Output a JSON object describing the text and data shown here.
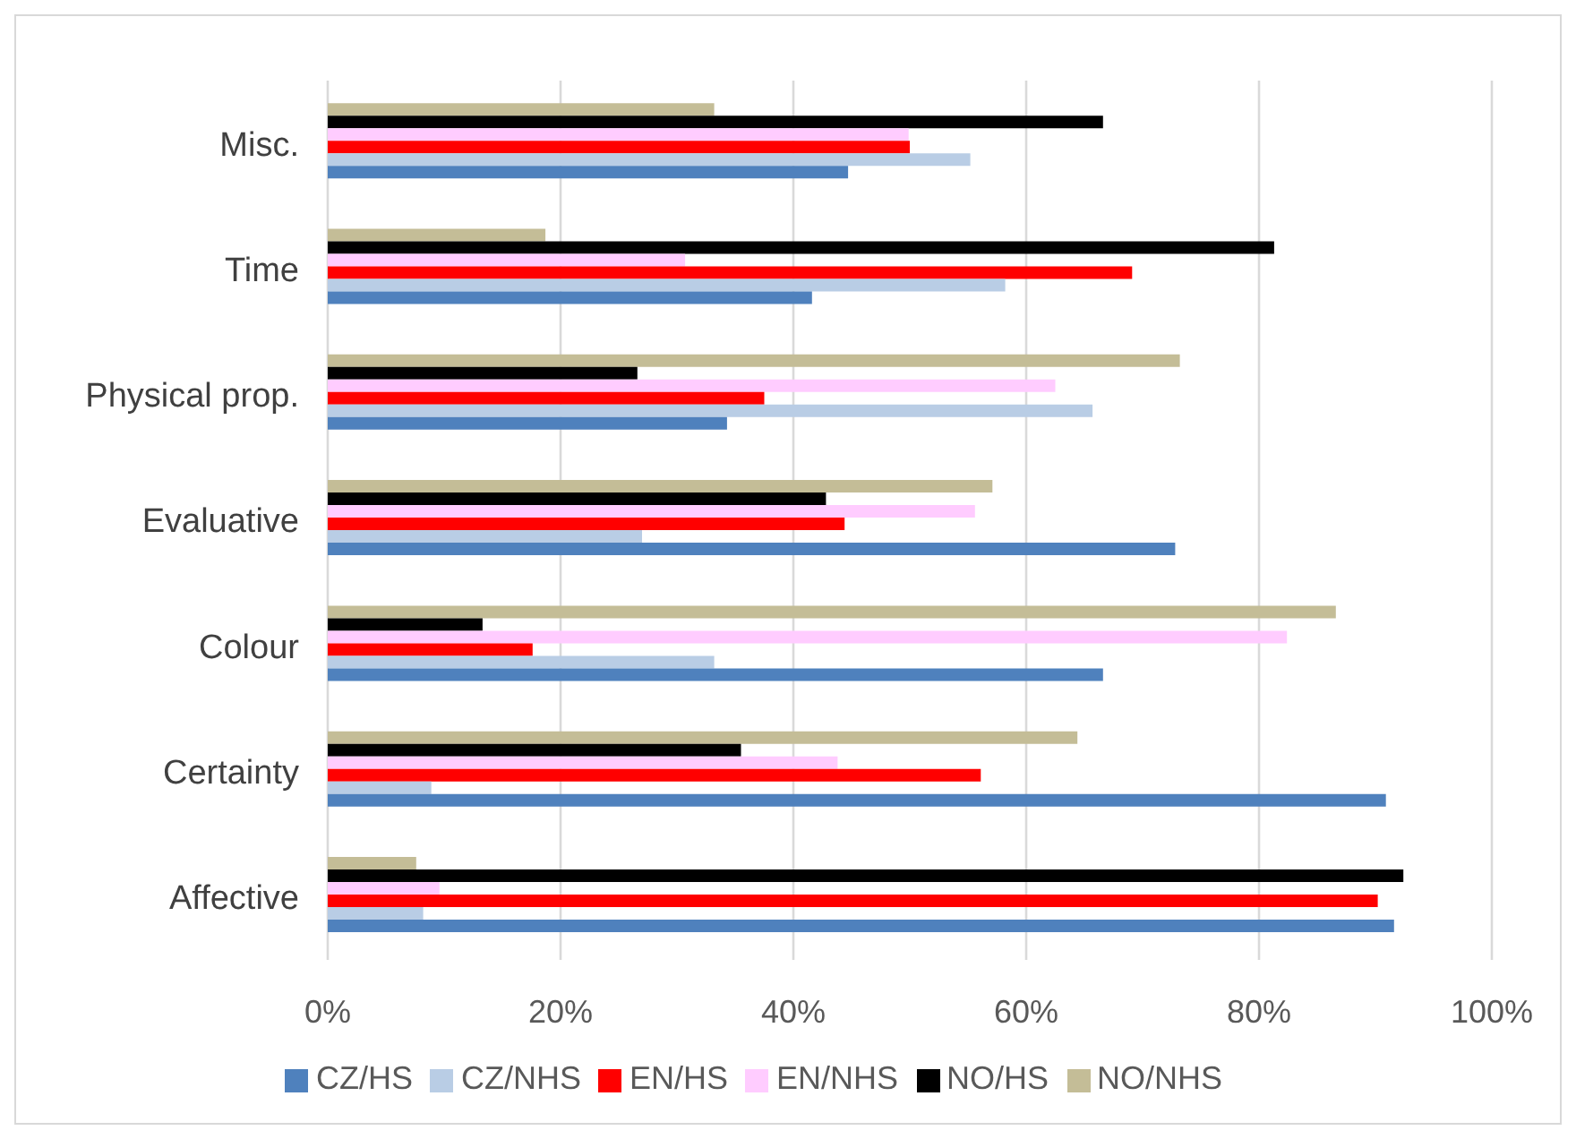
{
  "chart_data": {
    "type": "bar",
    "orientation": "horizontal",
    "categories": [
      "Misc.",
      "Time",
      "Physical prop.",
      "Evaluative",
      "Colour",
      "Certainty",
      "Affective"
    ],
    "series": [
      {
        "name": "NO/NHS",
        "color": "#c4bd97",
        "values": [
          33.2,
          18.7,
          73.2,
          57.1,
          86.6,
          64.4,
          7.6
        ]
      },
      {
        "name": "NO/HS",
        "color": "#000000",
        "values": [
          66.6,
          81.3,
          26.6,
          42.8,
          13.3,
          35.5,
          92.4
        ]
      },
      {
        "name": "EN/NHS",
        "color": "#ffccff",
        "values": [
          49.9,
          30.7,
          62.5,
          55.6,
          82.4,
          43.8,
          9.6
        ]
      },
      {
        "name": "EN/HS",
        "color": "#ff0000",
        "values": [
          50,
          69.1,
          37.5,
          44.4,
          17.6,
          56.1,
          90.2
        ]
      },
      {
        "name": "CZ/NHS",
        "color": "#b9cde5",
        "values": [
          55.2,
          58.2,
          65.7,
          27,
          33.2,
          8.9,
          8.2
        ]
      },
      {
        "name": "CZ/HS",
        "color": "#4f81bd",
        "values": [
          44.7,
          41.6,
          34.3,
          72.8,
          66.6,
          90.9,
          91.6
        ]
      }
    ],
    "xlim": [
      0,
      100
    ],
    "xticks": [
      {
        "value": 0,
        "label": "0%"
      },
      {
        "value": 20,
        "label": "20%"
      },
      {
        "value": 40,
        "label": "40%"
      },
      {
        "value": 60,
        "label": "60%"
      },
      {
        "value": 80,
        "label": "80%"
      },
      {
        "value": 100,
        "label": "100%"
      }
    ],
    "grid": "x",
    "legend": "bottom"
  }
}
